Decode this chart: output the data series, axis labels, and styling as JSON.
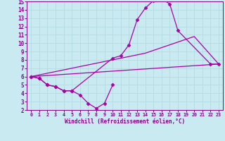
{
  "background_color": "#c8eaf0",
  "grid_color": "#b8dce4",
  "line_color": "#aa00aa",
  "marker_color": "#aa00aa",
  "xlabel": "Windchill (Refroidissement éolien,°C)",
  "xlabel_color": "#880088",
  "tick_color": "#880088",
  "xlim": [
    -0.5,
    23.5
  ],
  "ylim": [
    2,
    15
  ],
  "xtick_vals": [
    0,
    1,
    2,
    3,
    4,
    5,
    6,
    7,
    8,
    9,
    10,
    11,
    12,
    13,
    14,
    15,
    16,
    17,
    18,
    19,
    20,
    21,
    22,
    23
  ],
  "ytick_vals": [
    2,
    3,
    4,
    5,
    6,
    7,
    8,
    9,
    10,
    11,
    12,
    13,
    14,
    15
  ],
  "curve1_x": [
    0,
    1,
    2,
    3,
    4,
    5,
    6,
    7,
    8,
    9,
    10
  ],
  "curve1_y": [
    6,
    5.8,
    5.0,
    4.8,
    4.3,
    4.3,
    3.8,
    2.8,
    2.2,
    2.8,
    5.0
  ],
  "curve2_x": [
    0,
    1,
    2,
    3,
    4,
    5,
    10,
    11,
    12,
    13,
    14,
    15,
    16,
    17,
    18,
    22,
    23
  ],
  "curve2_y": [
    6,
    5.8,
    5.0,
    4.8,
    4.3,
    4.3,
    8.2,
    8.5,
    9.8,
    12.8,
    14.2,
    15.1,
    15.3,
    14.7,
    11.5,
    7.5,
    7.5
  ],
  "curve3_x": [
    0,
    23
  ],
  "curve3_y": [
    6,
    7.5
  ],
  "curve4_x": [
    0,
    10,
    14,
    20,
    23
  ],
  "curve4_y": [
    6,
    8.0,
    8.8,
    10.8,
    7.5
  ]
}
